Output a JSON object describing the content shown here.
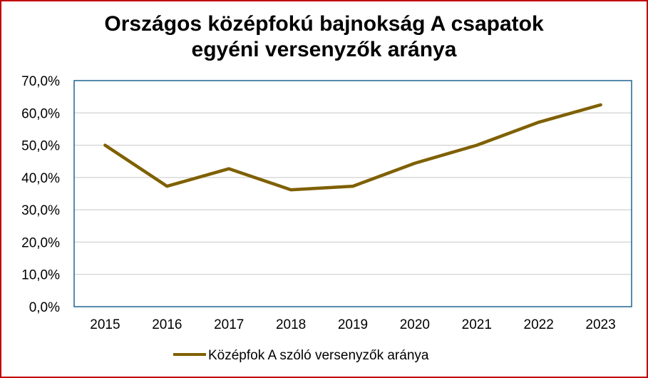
{
  "chart_data": {
    "type": "line",
    "title_line1": "Országos középfokú bajnokság A csapatok",
    "title_line2": "egyéni versenyzők aránya",
    "categories": [
      "2015",
      "2016",
      "2017",
      "2018",
      "2019",
      "2020",
      "2021",
      "2022",
      "2023"
    ],
    "series": [
      {
        "name": "Középfok A szóló versenyzők aránya",
        "values": [
          50.0,
          37.3,
          42.7,
          36.2,
          37.3,
          44.4,
          50.0,
          57.1,
          62.5
        ],
        "color": "#7f6000"
      }
    ],
    "yticks": [
      "0,0%",
      "10,0%",
      "20,0%",
      "30,0%",
      "40,0%",
      "50,0%",
      "60,0%",
      "70,0%"
    ],
    "ylim": [
      0,
      70
    ],
    "grid": true,
    "legend_position": "bottom",
    "plot_border_color": "#1f6391",
    "frame_color": "#c00000"
  }
}
